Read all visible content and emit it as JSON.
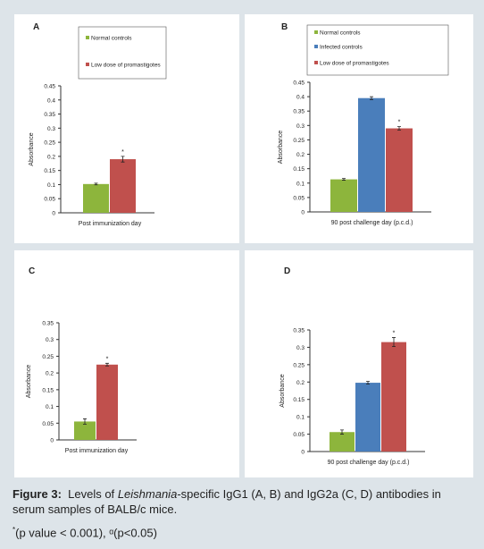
{
  "chart_data": [
    {
      "type": "bar",
      "panel": "A",
      "ylabel": "Absorbance",
      "xlabel": "Post immunization day",
      "ylim": [
        0,
        0.45
      ],
      "yticks": [
        0,
        0.05,
        0.1,
        0.15,
        0.2,
        0.25,
        0.3,
        0.35,
        0.4,
        0.45
      ],
      "series": [
        {
          "name": "Normal controls",
          "color": "#8db53c",
          "values": [
            0.102
          ],
          "errors": [
            0.003
          ]
        },
        {
          "name": "Low dose of promastigotes",
          "color": "#c0504d",
          "values": [
            0.19
          ],
          "errors": [
            0.01
          ],
          "annotation": "*"
        }
      ]
    },
    {
      "type": "bar",
      "panel": "B",
      "ylabel": "Absorbance",
      "xlabel": "90 post challenge day (p.c.d.)",
      "ylim": [
        0,
        0.45
      ],
      "yticks": [
        0,
        0.05,
        0.1,
        0.15,
        0.2,
        0.25,
        0.3,
        0.35,
        0.4,
        0.45
      ],
      "series": [
        {
          "name": "Normal controls",
          "color": "#8db53c",
          "values": [
            0.113
          ],
          "errors": [
            0.003
          ]
        },
        {
          "name": "Infected controls",
          "color": "#4a7ebb",
          "values": [
            0.395
          ],
          "errors": [
            0.005
          ]
        },
        {
          "name": "Low dose of promastigotes",
          "color": "#c0504d",
          "values": [
            0.29
          ],
          "errors": [
            0.006
          ],
          "annotation": "*"
        }
      ]
    },
    {
      "type": "bar",
      "panel": "C",
      "ylabel": "Absorbance",
      "xlabel": "Post immunization day",
      "ylim": [
        0,
        0.35
      ],
      "yticks": [
        0,
        0.05,
        0.1,
        0.15,
        0.2,
        0.25,
        0.3,
        0.35
      ],
      "series": [
        {
          "color": "#8db53c",
          "values": [
            0.055
          ],
          "errors": [
            0.008
          ]
        },
        {
          "color": "#c0504d",
          "values": [
            0.225
          ],
          "errors": [
            0.004
          ],
          "annotation": "*"
        }
      ]
    },
    {
      "type": "bar",
      "panel": "D",
      "ylabel": "Absorbance",
      "xlabel": "90 post challenge day (p.c.d.)",
      "ylim": [
        0,
        0.35
      ],
      "yticks": [
        0,
        0.05,
        0.1,
        0.15,
        0.2,
        0.25,
        0.3,
        0.35
      ],
      "series": [
        {
          "color": "#8db53c",
          "values": [
            0.056
          ],
          "errors": [
            0.006
          ]
        },
        {
          "color": "#4a7ebb",
          "values": [
            0.198
          ],
          "errors": [
            0.004
          ]
        },
        {
          "color": "#c0504d",
          "values": [
            0.315
          ],
          "errors": [
            0.013
          ],
          "annotation": "*"
        }
      ]
    }
  ],
  "caption": {
    "label": "Figure 3:",
    "before": "Levels of",
    "italic": "Leishmania",
    "after": "-specific IgG1 (A, B) and IgG2a (C, D) antibodies in serum samples of BALB/c mice.",
    "note_mark": "*",
    "note": "(p value < 0.001), ᵅ(p<0.05)"
  }
}
